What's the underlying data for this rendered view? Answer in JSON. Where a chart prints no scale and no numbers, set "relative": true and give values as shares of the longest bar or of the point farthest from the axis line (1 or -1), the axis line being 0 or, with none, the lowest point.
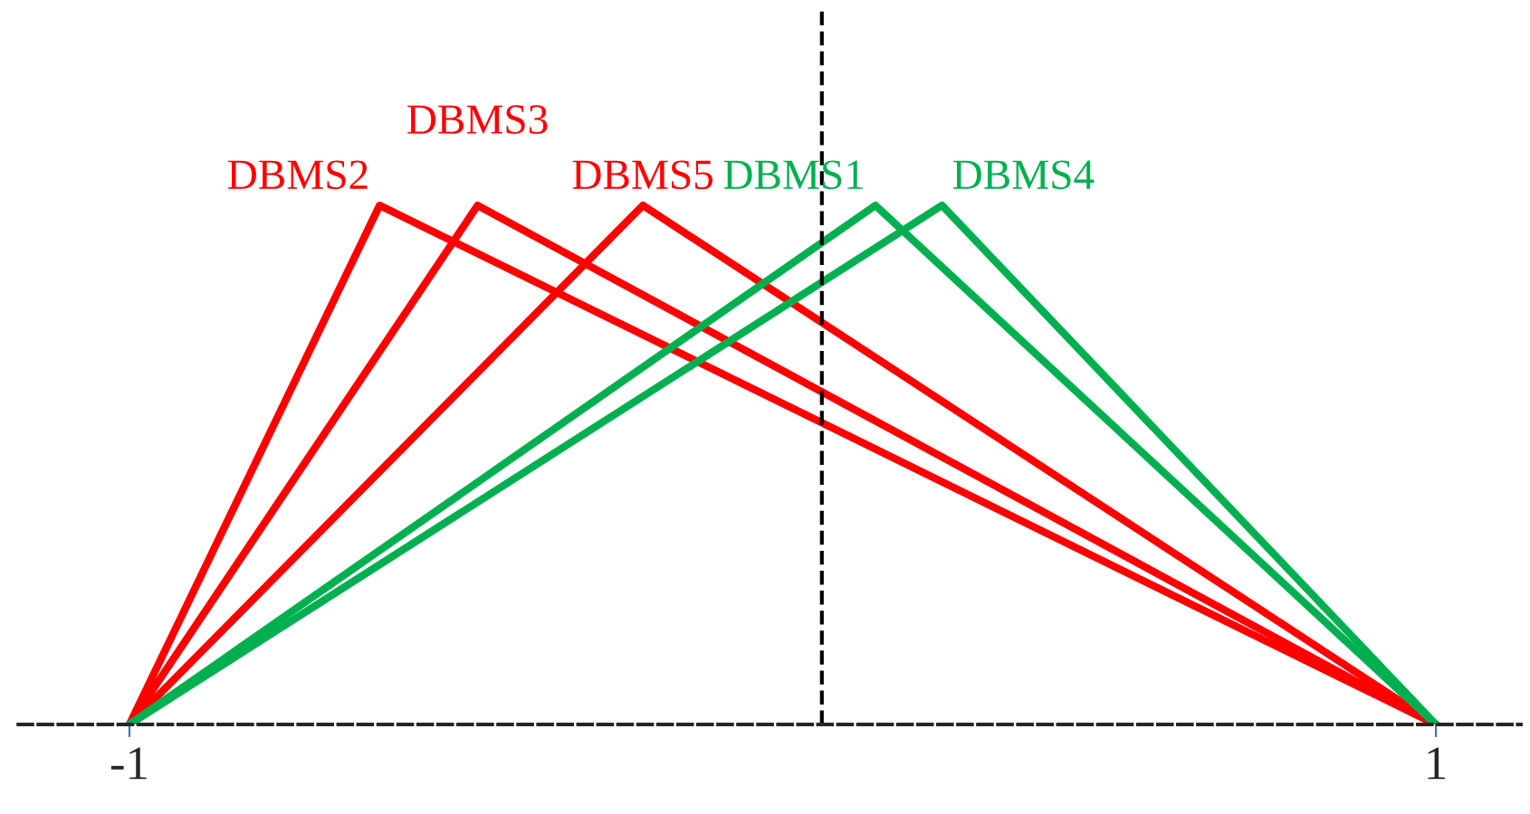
{
  "chart_data": {
    "type": "line",
    "relative": true,
    "series": [
      {
        "name": "DBMS2",
        "color": "#ff0000",
        "x": [
          -1,
          -0.617,
          1
        ],
        "values": [
          0,
          1,
          0
        ]
      },
      {
        "name": "DBMS3",
        "color": "#ff0000",
        "x": [
          -1,
          -0.467,
          1
        ],
        "values": [
          0,
          1,
          0
        ]
      },
      {
        "name": "DBMS5",
        "color": "#ff0000",
        "x": [
          -1,
          -0.214,
          1
        ],
        "values": [
          0,
          1,
          0
        ]
      },
      {
        "name": "DBMS1",
        "color": "#00b050",
        "x": [
          -1,
          0.142,
          1
        ],
        "values": [
          0,
          1,
          0
        ]
      },
      {
        "name": "DBMS4",
        "color": "#00b050",
        "x": [
          -1,
          0.244,
          1
        ],
        "values": [
          0,
          1,
          0
        ]
      }
    ],
    "xlim": [
      -1.17,
      1.13
    ],
    "xticks": [
      -1,
      1
    ],
    "ref_lines": [
      {
        "axis": "x",
        "value": 0.06,
        "line_style": "dashed",
        "color": "#000000"
      }
    ],
    "grid": false,
    "legend": false,
    "marker": "none",
    "line_style": "solid",
    "tick_labels": "x"
  }
}
